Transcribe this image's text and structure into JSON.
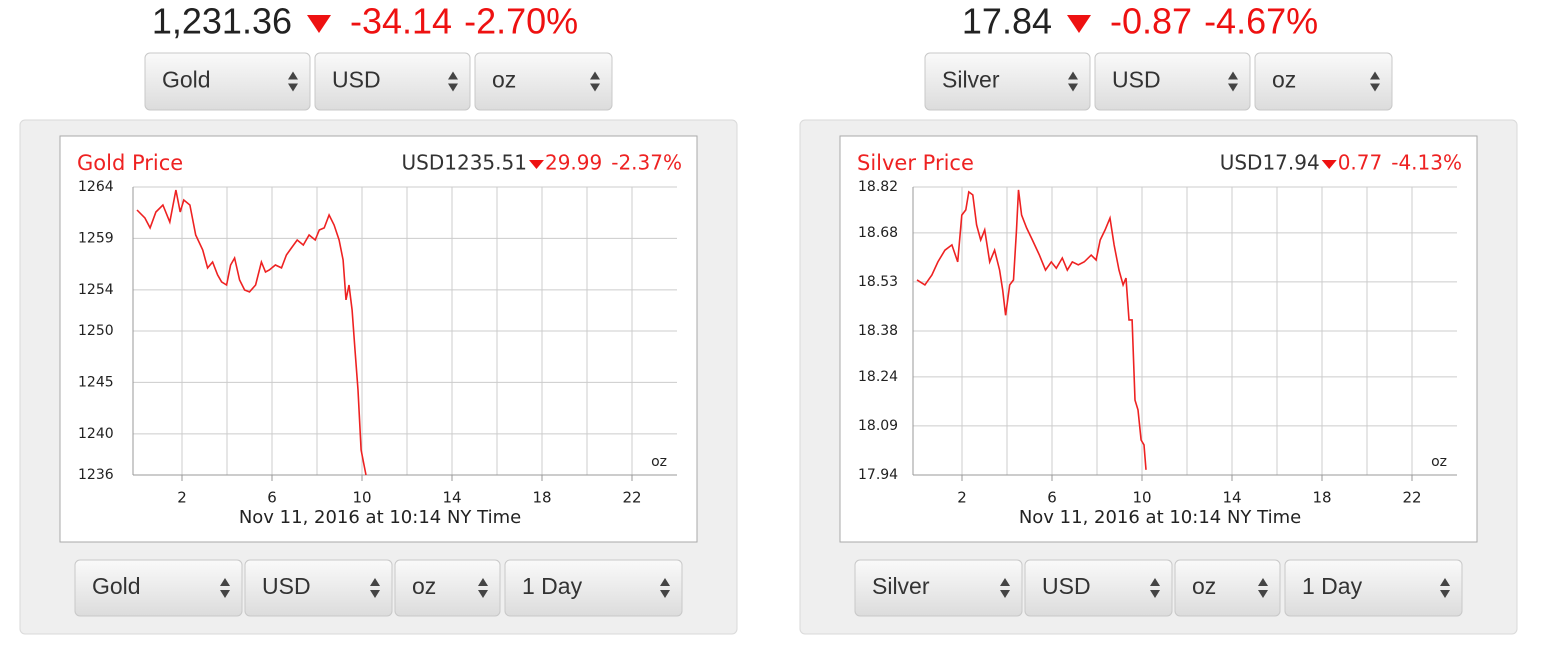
{
  "panels": [
    {
      "price": "1,231.36",
      "change": "-34.14",
      "change_pct": "-2.70%",
      "top_selects": [
        "Gold",
        "USD",
        "oz"
      ],
      "bottom_selects": [
        "Gold",
        "USD",
        "oz",
        "1 Day"
      ]
    },
    {
      "price": "17.84",
      "change": "-0.87",
      "change_pct": "-4.67%",
      "top_selects": [
        "Silver",
        "USD",
        "oz"
      ],
      "bottom_selects": [
        "Silver",
        "USD",
        "oz",
        "1 Day"
      ]
    }
  ],
  "chart_data": [
    {
      "type": "line",
      "title": "Gold Price",
      "quote": "USD1235.51",
      "change": "29.99",
      "change_pct": "-2.37%",
      "unit": "oz",
      "footer": "Nov 11, 2016 at 10:14 NY Time",
      "color": "#ee2222",
      "grid": true,
      "xlim": [
        0,
        24
      ],
      "xticks": [
        2,
        6,
        10,
        14,
        18,
        22
      ],
      "xgrid": [
        2,
        4,
        6,
        8,
        10,
        12,
        14,
        16,
        18,
        20,
        22
      ],
      "ylim": [
        1236,
        1264
      ],
      "yticks": [
        1264,
        1259,
        1254,
        1250,
        1245,
        1240,
        1236
      ],
      "x": [
        0,
        0.35,
        0.58,
        0.84,
        1.15,
        1.46,
        1.73,
        1.92,
        2.08,
        2.35,
        2.61,
        2.92,
        3.14,
        3.36,
        3.58,
        3.76,
        3.98,
        4.16,
        4.34,
        4.56,
        4.78,
        5.0,
        5.27,
        5.53,
        5.71,
        5.88,
        6.15,
        6.42,
        6.64,
        6.86,
        7.12,
        7.39,
        7.65,
        7.92,
        8.1,
        8.32,
        8.54,
        8.76,
        8.98,
        9.16,
        9.29,
        9.42,
        9.56,
        9.69,
        9.82,
        9.96,
        10.09,
        10.18
      ],
      "values": [
        1261.76,
        1260.99,
        1260.02,
        1261.57,
        1262.25,
        1260.6,
        1263.71,
        1261.57,
        1262.74,
        1262.25,
        1259.33,
        1257.88,
        1256.13,
        1256.71,
        1255.45,
        1254.77,
        1254.47,
        1256.42,
        1257.1,
        1254.96,
        1253.99,
        1253.8,
        1254.47,
        1256.71,
        1255.74,
        1255.93,
        1256.42,
        1256.13,
        1257.39,
        1258.07,
        1258.85,
        1258.36,
        1259.33,
        1258.85,
        1259.82,
        1260.02,
        1261.28,
        1260.31,
        1258.85,
        1256.9,
        1253.02,
        1254.47,
        1252.04,
        1248.16,
        1244.27,
        1238.44,
        1236.98,
        1236.0
      ]
    },
    {
      "type": "line",
      "title": "Silver Price",
      "quote": "USD17.94",
      "change": "0.77",
      "change_pct": "-4.13%",
      "unit": "oz",
      "footer": "Nov 11, 2016 at 10:14 NY Time",
      "color": "#ee2222",
      "grid": true,
      "xlim": [
        0,
        24
      ],
      "xticks": [
        2,
        6,
        10,
        14,
        18,
        22
      ],
      "xgrid": [
        2,
        4,
        6,
        8,
        10,
        12,
        14,
        16,
        18,
        20,
        22
      ],
      "ylim": [
        17.94,
        18.82
      ],
      "yticks": [
        18.82,
        18.68,
        18.53,
        18.38,
        18.24,
        18.09,
        17.94
      ],
      "x": [
        0,
        0.35,
        0.66,
        0.93,
        1.24,
        1.55,
        1.81,
        1.99,
        2.17,
        2.3,
        2.48,
        2.65,
        2.83,
        3.01,
        3.23,
        3.45,
        3.67,
        3.81,
        3.94,
        4.12,
        4.29,
        4.42,
        4.51,
        4.65,
        4.87,
        5.13,
        5.44,
        5.71,
        5.97,
        6.19,
        6.46,
        6.68,
        6.9,
        7.17,
        7.43,
        7.74,
        7.96,
        8.14,
        8.36,
        8.58,
        8.76,
        8.98,
        9.16,
        9.29,
        9.42,
        9.56,
        9.69,
        9.82,
        9.96,
        10.09,
        10.18
      ],
      "values": [
        18.536,
        18.521,
        18.551,
        18.591,
        18.627,
        18.643,
        18.591,
        18.734,
        18.75,
        18.805,
        18.796,
        18.704,
        18.658,
        18.689,
        18.591,
        18.627,
        18.566,
        18.505,
        18.428,
        18.521,
        18.536,
        18.689,
        18.811,
        18.734,
        18.695,
        18.658,
        18.612,
        18.566,
        18.591,
        18.572,
        18.603,
        18.566,
        18.591,
        18.582,
        18.591,
        18.612,
        18.597,
        18.658,
        18.689,
        18.725,
        18.643,
        18.566,
        18.521,
        18.542,
        18.414,
        18.414,
        18.169,
        18.139,
        18.047,
        18.032,
        17.956
      ]
    }
  ]
}
